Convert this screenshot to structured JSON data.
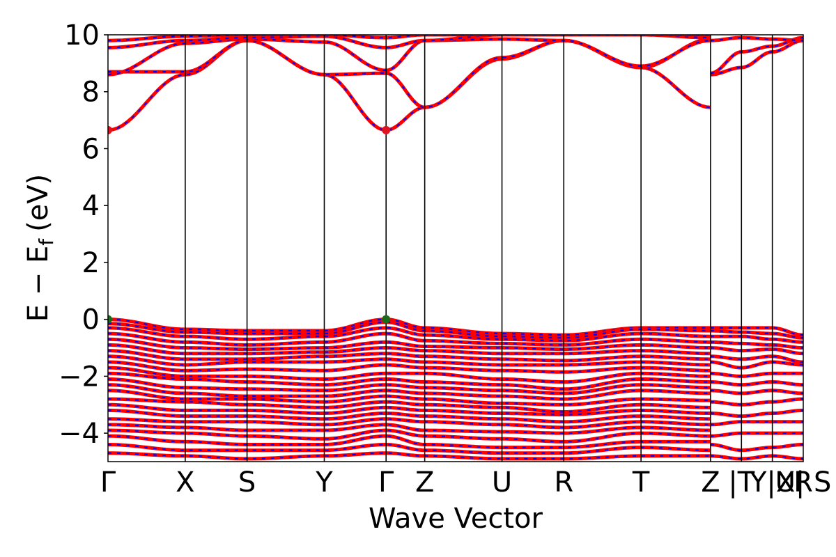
{
  "chart_data": {
    "type": "line",
    "title": "",
    "xlabel": "Wave Vector",
    "ylabel": "E − E",
    "ylabel_subscript": "f",
    "ylabel_unit": "(eV)",
    "ylim": [
      -5,
      10
    ],
    "yticks": [
      -4,
      -2,
      0,
      2,
      4,
      6,
      8,
      10
    ],
    "ytick_labels": [
      "−4",
      "−2",
      "0",
      "2",
      "4",
      "6",
      "8",
      "10"
    ],
    "kpath": {
      "positions": [
        0,
        1,
        1.8,
        2.8,
        3.6,
        4.1,
        5.1,
        5.9,
        6.9,
        7.8,
        8.2,
        8.6,
        9.0
      ],
      "labels": [
        "Γ",
        "X",
        "S",
        "Y",
        "Γ",
        "Z",
        "U",
        "R",
        "T",
        "Z",
        "|T",
        "Y|X",
        "U| S"
      ],
      "end_label": "R",
      "xmax": 9.0
    },
    "line_colors": {
      "spin_up": "#ff0000",
      "spin_down": "#0000ff"
    },
    "markers": [
      {
        "name": "CBM",
        "x": 0,
        "y": 6.65,
        "color": "#e0141e"
      },
      {
        "name": "CBM",
        "x": 3.6,
        "y": 6.65,
        "color": "#e0141e"
      },
      {
        "name": "VBM",
        "x": 0,
        "y": 0,
        "color": "#1a6b1a"
      },
      {
        "name": "VBM",
        "x": 3.6,
        "y": 0,
        "color": "#1a6b1a"
      }
    ],
    "conduction_bands": [
      [
        6.65,
        8.6,
        9.8,
        8.6,
        6.65,
        7.45,
        9.15,
        9.8,
        8.85,
        7.45
      ],
      [
        8.7,
        8.7,
        9.8,
        8.6,
        8.65,
        7.45,
        9.2,
        9.8,
        8.85,
        9.85
      ],
      [
        8.6,
        9.7,
        9.85,
        9.75,
        8.75,
        9.8,
        9.85,
        9.8,
        8.9,
        9.8
      ],
      [
        9.55,
        9.8,
        9.9,
        9.95,
        9.55,
        9.8,
        10.0,
        10.0,
        10.0,
        9.9
      ],
      [
        9.8,
        9.95,
        10.0,
        10.0,
        9.9,
        10.0,
        10.0,
        10.0,
        10.0,
        10.0
      ]
    ],
    "conduction_segment_bands": [
      [
        8.6,
        8.85,
        9.4,
        9.8
      ],
      [
        8.65,
        9.4,
        9.6,
        9.9
      ],
      [
        9.8,
        9.9,
        9.85,
        9.8
      ]
    ],
    "valence_bands": [
      [
        0.0,
        -0.35,
        -0.4,
        -0.4,
        0.0,
        -0.3,
        -0.5,
        -0.55,
        -0.3,
        -0.3
      ],
      [
        -0.15,
        -0.45,
        -0.5,
        -0.5,
        -0.1,
        -0.4,
        -0.6,
        -0.65,
        -0.35,
        -0.4
      ],
      [
        -0.3,
        -0.6,
        -0.7,
        -0.6,
        -0.3,
        -0.55,
        -0.7,
        -0.75,
        -0.5,
        -0.6
      ],
      [
        -0.5,
        -0.8,
        -0.9,
        -0.8,
        -0.5,
        -0.75,
        -0.85,
        -0.9,
        -0.7,
        -0.8
      ],
      [
        -0.7,
        -1.0,
        -1.05,
        -1.0,
        -0.8,
        -0.95,
        -1.0,
        -1.05,
        -0.9,
        -1.0
      ],
      [
        -0.9,
        -1.2,
        -1.2,
        -1.15,
        -1.0,
        -1.1,
        -1.2,
        -1.2,
        -1.1,
        -1.2
      ],
      [
        -1.1,
        -1.4,
        -1.4,
        -1.3,
        -1.2,
        -1.3,
        -1.4,
        -1.45,
        -1.3,
        -1.4
      ],
      [
        -1.3,
        -1.6,
        -1.5,
        -1.5,
        -1.4,
        -1.5,
        -1.6,
        -1.6,
        -1.5,
        -1.6
      ],
      [
        -1.5,
        -1.8,
        -1.75,
        -1.8,
        -1.6,
        -1.7,
        -1.8,
        -1.85,
        -1.7,
        -1.8
      ],
      [
        -1.7,
        -2.0,
        -2.0,
        -2.1,
        -1.9,
        -1.9,
        -2.1,
        -2.2,
        -1.9,
        -2.0
      ],
      [
        -1.9,
        -2.1,
        -2.2,
        -2.3,
        -2.1,
        -2.2,
        -2.3,
        -2.45,
        -2.1,
        -2.2
      ],
      [
        -2.1,
        -2.4,
        -2.45,
        -2.5,
        -2.3,
        -2.4,
        -2.5,
        -2.6,
        -2.3,
        -2.4
      ],
      [
        -2.3,
        -2.6,
        -2.7,
        -2.7,
        -2.5,
        -2.6,
        -2.7,
        -2.8,
        -2.5,
        -2.6
      ],
      [
        -2.5,
        -2.8,
        -2.8,
        -2.9,
        -2.7,
        -2.8,
        -2.95,
        -3.0,
        -2.8,
        -2.85
      ],
      [
        -2.8,
        -2.9,
        -3.0,
        -3.1,
        -2.9,
        -3.0,
        -3.1,
        -3.25,
        -3.0,
        -3.1
      ],
      [
        -3.0,
        -3.2,
        -3.2,
        -3.3,
        -3.1,
        -3.2,
        -3.3,
        -3.35,
        -3.2,
        -3.3
      ],
      [
        -3.2,
        -3.4,
        -3.4,
        -3.5,
        -3.3,
        -3.4,
        -3.5,
        -3.6,
        -3.4,
        -3.5
      ],
      [
        -3.5,
        -3.6,
        -3.6,
        -3.7,
        -3.5,
        -3.6,
        -3.7,
        -3.8,
        -3.6,
        -3.7
      ],
      [
        -3.7,
        -3.8,
        -3.9,
        -3.9,
        -3.7,
        -3.9,
        -3.95,
        -4.0,
        -3.8,
        -3.9
      ],
      [
        -3.9,
        -4.0,
        -4.1,
        -4.2,
        -3.9,
        -4.1,
        -4.2,
        -4.3,
        -4.0,
        -4.1
      ],
      [
        -4.1,
        -4.3,
        -4.4,
        -4.4,
        -4.1,
        -4.4,
        -4.5,
        -4.5,
        -4.3,
        -4.3
      ],
      [
        -4.4,
        -4.6,
        -4.6,
        -4.6,
        -4.4,
        -4.6,
        -4.7,
        -4.7,
        -4.5,
        -4.6
      ],
      [
        -4.7,
        -4.8,
        -4.9,
        -4.8,
        -4.7,
        -4.8,
        -4.9,
        -4.9,
        -4.8,
        -4.8
      ]
    ],
    "valence_segment_bands": [
      [
        -0.3,
        -0.3,
        -0.3,
        -0.55
      ],
      [
        -0.4,
        -0.45,
        -0.5,
        -0.65
      ],
      [
        -0.6,
        -0.6,
        -0.7,
        -0.8
      ],
      [
        -0.8,
        -0.85,
        -0.9,
        -1.0
      ],
      [
        -1.0,
        -1.1,
        -1.05,
        -1.2
      ],
      [
        -1.3,
        -1.4,
        -1.3,
        -1.5
      ],
      [
        -1.5,
        -1.7,
        -1.5,
        -1.6
      ],
      [
        -1.9,
        -2.0,
        -1.9,
        -1.9
      ],
      [
        -2.2,
        -2.3,
        -2.2,
        -2.3
      ],
      [
        -2.5,
        -2.6,
        -2.5,
        -2.6
      ],
      [
        -2.9,
        -3.0,
        -2.9,
        -2.8
      ],
      [
        -3.3,
        -3.4,
        -3.3,
        -3.2
      ],
      [
        -3.7,
        -3.6,
        -3.6,
        -3.6
      ],
      [
        -4.1,
        -4.0,
        -4.0,
        -4.0
      ],
      [
        -4.4,
        -4.6,
        -4.5,
        -4.4
      ],
      [
        -4.8,
        -4.9,
        -4.8,
        -4.9
      ]
    ]
  }
}
